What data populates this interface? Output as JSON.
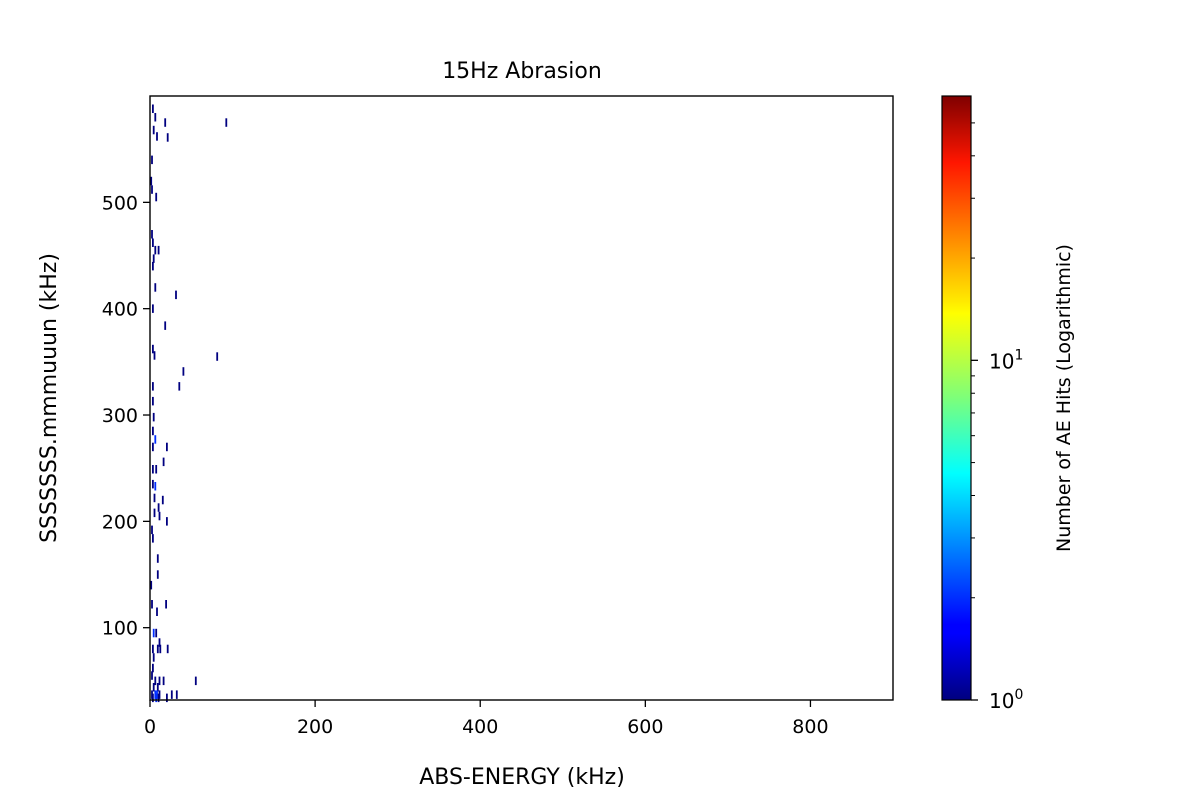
{
  "chart_data": {
    "type": "heatmap",
    "title": "15Hz Abrasion",
    "xlabel": "ABS-ENERGY (kHz)",
    "ylabel": "SSSSSSS.mmmuuun (kHz)",
    "xlim": [
      0,
      900
    ],
    "ylim": [
      32,
      600
    ],
    "x_ticks": [
      0,
      200,
      400,
      600,
      800
    ],
    "y_ticks": [
      100,
      200,
      300,
      400,
      500
    ],
    "grid": false,
    "colorbar": {
      "label": "Number of AE Hits (Logarithmic)",
      "scale": "log",
      "colormap": "jet",
      "range": [
        1,
        60
      ],
      "ticks": [
        {
          "value": 1,
          "label": "10⁰",
          "base": "10",
          "exp": "0"
        },
        {
          "value": 10,
          "label": "10¹",
          "base": "10",
          "exp": "1"
        }
      ]
    },
    "cells": [
      {
        "x": 2,
        "y": 588,
        "count": 1
      },
      {
        "x": 5,
        "y": 580,
        "count": 1
      },
      {
        "x": 17,
        "y": 575,
        "count": 1
      },
      {
        "x": 91,
        "y": 575,
        "count": 1
      },
      {
        "x": 3,
        "y": 568,
        "count": 1
      },
      {
        "x": 7,
        "y": 562,
        "count": 1
      },
      {
        "x": 20,
        "y": 561,
        "count": 1
      },
      {
        "x": 1,
        "y": 540,
        "count": 1
      },
      {
        "x": 0,
        "y": 520,
        "count": 1
      },
      {
        "x": 1,
        "y": 512,
        "count": 1
      },
      {
        "x": 6,
        "y": 505,
        "count": 1
      },
      {
        "x": 1,
        "y": 470,
        "count": 1
      },
      {
        "x": 2,
        "y": 462,
        "count": 1
      },
      {
        "x": 5,
        "y": 455,
        "count": 1
      },
      {
        "x": 9,
        "y": 455,
        "count": 1
      },
      {
        "x": 3,
        "y": 447,
        "count": 1
      },
      {
        "x": 2,
        "y": 440,
        "count": 1
      },
      {
        "x": 5,
        "y": 420,
        "count": 1
      },
      {
        "x": 30,
        "y": 413,
        "count": 1
      },
      {
        "x": 2,
        "y": 400,
        "count": 1
      },
      {
        "x": 17,
        "y": 384,
        "count": 1
      },
      {
        "x": 2,
        "y": 362,
        "count": 1
      },
      {
        "x": 4,
        "y": 356,
        "count": 1
      },
      {
        "x": 80,
        "y": 355,
        "count": 1
      },
      {
        "x": 39,
        "y": 341,
        "count": 1
      },
      {
        "x": 34,
        "y": 327,
        "count": 1
      },
      {
        "x": 2,
        "y": 327,
        "count": 1
      },
      {
        "x": 2,
        "y": 313,
        "count": 1
      },
      {
        "x": 3,
        "y": 298,
        "count": 1
      },
      {
        "x": 2,
        "y": 285,
        "count": 1
      },
      {
        "x": 5,
        "y": 277,
        "count": 2
      },
      {
        "x": 2,
        "y": 270,
        "count": 1
      },
      {
        "x": 19,
        "y": 270,
        "count": 1
      },
      {
        "x": 15,
        "y": 256,
        "count": 1
      },
      {
        "x": 2,
        "y": 249,
        "count": 1
      },
      {
        "x": 6,
        "y": 249,
        "count": 1
      },
      {
        "x": 2,
        "y": 235,
        "count": 1
      },
      {
        "x": 5,
        "y": 233,
        "count": 2
      },
      {
        "x": 4,
        "y": 222,
        "count": 1
      },
      {
        "x": 14,
        "y": 220,
        "count": 1
      },
      {
        "x": 9,
        "y": 213,
        "count": 1
      },
      {
        "x": 4,
        "y": 208,
        "count": 1
      },
      {
        "x": 10,
        "y": 205,
        "count": 1
      },
      {
        "x": 19,
        "y": 200,
        "count": 1
      },
      {
        "x": 1,
        "y": 192,
        "count": 1
      },
      {
        "x": 2,
        "y": 184,
        "count": 1
      },
      {
        "x": 8,
        "y": 165,
        "count": 1
      },
      {
        "x": 8,
        "y": 150,
        "count": 1
      },
      {
        "x": 0,
        "y": 140,
        "count": 1
      },
      {
        "x": 1,
        "y": 122,
        "count": 1
      },
      {
        "x": 18,
        "y": 122,
        "count": 1
      },
      {
        "x": 7,
        "y": 115,
        "count": 1
      },
      {
        "x": 3,
        "y": 95,
        "count": 2
      },
      {
        "x": 6,
        "y": 95,
        "count": 1
      },
      {
        "x": 10,
        "y": 86,
        "count": 1
      },
      {
        "x": 2,
        "y": 80,
        "count": 1
      },
      {
        "x": 8,
        "y": 80,
        "count": 1
      },
      {
        "x": 11,
        "y": 80,
        "count": 1
      },
      {
        "x": 20,
        "y": 80,
        "count": 1
      },
      {
        "x": 3,
        "y": 72,
        "count": 1
      },
      {
        "x": 2,
        "y": 62,
        "count": 1
      },
      {
        "x": 1,
        "y": 55,
        "count": 1
      },
      {
        "x": 5,
        "y": 50,
        "count": 1
      },
      {
        "x": 10,
        "y": 50,
        "count": 1
      },
      {
        "x": 15,
        "y": 50,
        "count": 1
      },
      {
        "x": 54,
        "y": 50,
        "count": 1
      },
      {
        "x": 3,
        "y": 44,
        "count": 1
      },
      {
        "x": 8,
        "y": 44,
        "count": 1
      },
      {
        "x": 1,
        "y": 37,
        "count": 1
      },
      {
        "x": 5,
        "y": 37,
        "count": 2
      },
      {
        "x": 7,
        "y": 37,
        "count": 2
      },
      {
        "x": 10,
        "y": 37,
        "count": 1
      },
      {
        "x": 25,
        "y": 37,
        "count": 1
      },
      {
        "x": 31,
        "y": 37,
        "count": 1
      },
      {
        "x": 2,
        "y": 34,
        "count": 1
      },
      {
        "x": 6,
        "y": 34,
        "count": 2
      },
      {
        "x": 9,
        "y": 34,
        "count": 1
      },
      {
        "x": 19,
        "y": 34,
        "count": 1
      }
    ]
  }
}
